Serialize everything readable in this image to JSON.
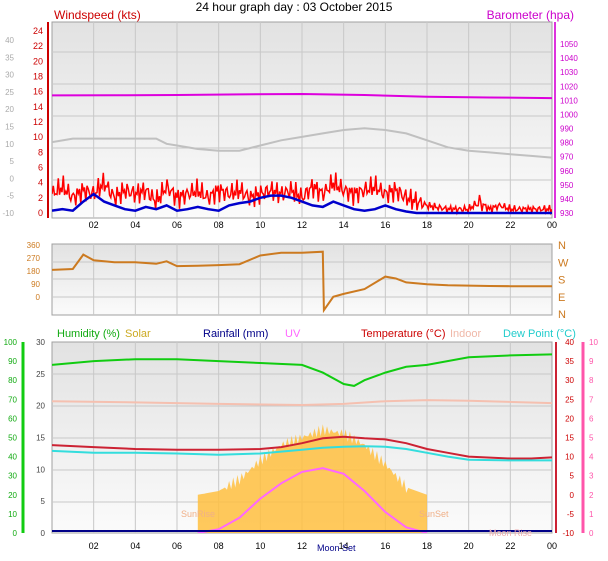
{
  "title": "24 hour graph day : 03 October 2015",
  "colors": {
    "wind": "#ff0000",
    "gust": "#0000cc",
    "baro": "#dd00dd",
    "avgwind": "#c0c0c0",
    "dir": "#cc7a20",
    "humidity": "#11cc11",
    "solar": "#ffc040",
    "rain": "#000088",
    "uv": "#ff66ff",
    "temp": "#cc2233",
    "indoor": "#f5c0b0",
    "dew": "#33dddd",
    "axisRed": "#cc0000",
    "axisMagenta": "#cc00cc",
    "axisGreen": "#11cc11",
    "axisPink": "#ff55aa",
    "grid": "#c8c8c8"
  },
  "xticks": [
    "02",
    "04",
    "06",
    "08",
    "10",
    "12",
    "14",
    "16",
    "18",
    "20",
    "22",
    "00"
  ],
  "chart_data": [
    {
      "type": "line",
      "panel": "wind-baro",
      "left_label": "Windspeed (kts)",
      "right_label": "Barometer (hpa)",
      "left_outer_ticks": [
        "40",
        "35",
        "30",
        "25",
        "20",
        "15",
        "10",
        "5",
        "0",
        "-5",
        "-10"
      ],
      "left_inner_ticks": [
        "24",
        "22",
        "20",
        "18",
        "16",
        "14",
        "12",
        "10",
        "8",
        "6",
        "4",
        "2",
        "0"
      ],
      "right_ticks": [
        "1050",
        "1040",
        "1030",
        "1020",
        "1010",
        "1000",
        "990",
        "980",
        "970",
        "960",
        "950",
        "940",
        "930"
      ],
      "series": [
        {
          "name": "Barometer",
          "axis": "hpa",
          "x": [
            0,
            3,
            6,
            9,
            12,
            15,
            18,
            21,
            24
          ],
          "y": [
            1013.5,
            1013.6,
            1013.8,
            1014.2,
            1014.5,
            1013.8,
            1012.6,
            1012.0,
            1011.6
          ]
        },
        {
          "name": "",
          "label": "average wind",
          "axis": "kts outer",
          "x": [
            0,
            1,
            2,
            3,
            4,
            5,
            5.5,
            6,
            7,
            8,
            9,
            10,
            11,
            12,
            13,
            14,
            15,
            16,
            17,
            18,
            19,
            20,
            21,
            22,
            23,
            24
          ],
          "y": [
            10.5,
            11.5,
            11.5,
            11.5,
            11.5,
            11.5,
            10,
            9.5,
            8.5,
            8,
            8,
            9.5,
            11,
            12,
            13,
            14,
            14.5,
            14,
            13,
            11,
            9,
            8,
            7.5,
            7,
            6.5,
            6
          ]
        },
        {
          "name": "",
          "label": "wind speed",
          "axis": "kts inner",
          "x": [
            0,
            0.5,
            1,
            1.5,
            2,
            2.5,
            3,
            3.5,
            4,
            4.5,
            5,
            5.5,
            6,
            6.5,
            7,
            7.5,
            8,
            8.5,
            9,
            9.5,
            10,
            10.5,
            11,
            11.5,
            12,
            12.5,
            13,
            13.5,
            14,
            14.5,
            15,
            15.5,
            16,
            16.5,
            17,
            17.5,
            18,
            19,
            20,
            20.5,
            21,
            21.5,
            22,
            22.5,
            23,
            24
          ],
          "y": [
            2.5,
            3.5,
            2,
            3,
            2.5,
            4,
            2,
            3,
            2.5,
            3,
            1.5,
            3.5,
            2,
            2.5,
            3,
            2,
            3,
            2.5,
            3,
            2,
            2.5,
            3,
            2.5,
            3,
            2,
            3.5,
            2.5,
            4,
            3,
            2.5,
            3,
            3.5,
            2.5,
            3,
            2,
            1.5,
            1,
            0.5,
            0.5,
            1.5,
            0.5,
            1,
            0.5,
            0.5,
            0.5,
            0.5
          ]
        },
        {
          "name": "",
          "label": "gust",
          "axis": "kts inner",
          "x": [
            0,
            0.5,
            1,
            1.5,
            2,
            2.5,
            3,
            3.5,
            4,
            4.5,
            5,
            5.5,
            6,
            6.5,
            7,
            7.5,
            8,
            8.5,
            9,
            9.5,
            10,
            10.5,
            11,
            11.5,
            12,
            12.5,
            13,
            13.5,
            14,
            14.5,
            15,
            15.5,
            16,
            16.5,
            17,
            17.5,
            18,
            19,
            20,
            21,
            22,
            23,
            24
          ],
          "y": [
            0.3,
            0.5,
            0.3,
            1.5,
            2.5,
            1.5,
            1,
            0.5,
            0.3,
            0.8,
            0.5,
            1,
            0.3,
            0.5,
            0.8,
            0.5,
            0.3,
            1,
            1.3,
            1.5,
            2,
            2.3,
            2.3,
            2,
            1.5,
            1,
            0.8,
            1.5,
            1,
            0.5,
            0.3,
            0.5,
            1,
            0.5,
            0.2,
            0,
            0,
            0,
            0,
            0,
            0,
            0,
            0
          ]
        }
      ]
    },
    {
      "type": "line",
      "panel": "direction",
      "left_ticks": [
        "360",
        "270",
        "180",
        "90",
        "0"
      ],
      "right_ticks": [
        "N",
        "W",
        "S",
        "E",
        "N"
      ],
      "series": [
        {
          "name": "",
          "label": "wind direction",
          "x": [
            0,
            1,
            1.5,
            2,
            3,
            4,
            5,
            5.5,
            6,
            7,
            8,
            9,
            10,
            11,
            12,
            13,
            13.05,
            13.5,
            14,
            15,
            16,
            16.5,
            17,
            18,
            19,
            20,
            21,
            22,
            23,
            24
          ],
          "y": [
            230,
            235,
            310,
            280,
            270,
            270,
            262,
            275,
            250,
            252,
            255,
            260,
            305,
            320,
            320,
            325,
            20,
            90,
            105,
            130,
            195,
            185,
            165,
            155,
            150,
            148,
            146,
            145,
            145,
            145
          ]
        }
      ]
    },
    {
      "type": "line",
      "panel": "temp-hum",
      "legend": [
        "Humidity (%)",
        "Solar",
        "Rainfall (mm)",
        "UV",
        "Temperature (°C)",
        "Indoor",
        "Dew Point (°C)"
      ],
      "left_outer_ticks": [
        "100",
        "90",
        "80",
        "70",
        "60",
        "50",
        "40",
        "30",
        "20",
        "10",
        "0"
      ],
      "left_inner_ticks": [
        "30",
        "25",
        "20",
        "15",
        "10",
        "5",
        "0"
      ],
      "right_inner_ticks": [
        "40",
        "35",
        "30",
        "25",
        "20",
        "15",
        "10",
        "5",
        "0",
        "-5",
        "-10"
      ],
      "right_outer_ticks": [
        "10",
        "9",
        "8",
        "7",
        "6",
        "5",
        "4",
        "3",
        "2",
        "1",
        "0"
      ],
      "annotations": [
        "SunRise",
        "SunSet",
        "Moon Rise",
        "Moon Set"
      ],
      "series": [
        {
          "name": "Humidity (%)",
          "x": [
            0,
            2,
            4,
            6,
            8,
            10,
            12,
            13,
            14,
            14.5,
            15,
            16,
            17,
            18,
            20,
            22,
            24
          ],
          "y": [
            88,
            90,
            91,
            91,
            90,
            89,
            88,
            84,
            78,
            77,
            80,
            84,
            87,
            88,
            92,
            93,
            93.5
          ]
        },
        {
          "name": "Solar",
          "x": [
            7,
            8,
            9,
            10,
            11,
            12,
            13,
            14,
            15,
            16,
            17,
            18
          ],
          "y": [
            0,
            1,
            4,
            9,
            13,
            15,
            17,
            16,
            13,
            8,
            2,
            0
          ]
        },
        {
          "name": "Indoor",
          "x": [
            0,
            4,
            8,
            12,
            14,
            16,
            18,
            20,
            24
          ],
          "y": [
            24.5,
            24.2,
            23.8,
            23.5,
            23.8,
            24.5,
            24.8,
            24.6,
            24.0
          ]
        },
        {
          "name": "Temperature (°C)",
          "x": [
            0,
            2,
            4,
            6,
            8,
            10,
            11,
            12,
            13,
            14,
            15,
            16,
            17,
            18,
            19,
            20,
            22,
            23,
            24
          ],
          "y": [
            13,
            12.5,
            12,
            11.8,
            11.8,
            12,
            12.5,
            13.5,
            14.8,
            15.2,
            14.8,
            14.5,
            13.5,
            12,
            11,
            10,
            9.5,
            9.5,
            9.8
          ]
        },
        {
          "name": "Dew Point (°C)",
          "x": [
            0,
            2,
            4,
            6,
            8,
            10,
            12,
            13,
            14,
            15,
            16,
            17,
            18,
            19,
            20,
            22,
            24
          ],
          "y": [
            11.5,
            11,
            11,
            10.8,
            10.5,
            10.8,
            11.8,
            12.3,
            12.6,
            12.7,
            12.6,
            12,
            11,
            10,
            9.2,
            9,
            9
          ]
        },
        {
          "name": "UV",
          "x": [
            7,
            8,
            9,
            10,
            11,
            12,
            13,
            14,
            15,
            16,
            17,
            18
          ],
          "y": [
            0,
            0.2,
            0.8,
            1.8,
            2.6,
            3.2,
            3.4,
            3.1,
            2.2,
            1.1,
            0.3,
            0
          ]
        }
      ]
    }
  ]
}
